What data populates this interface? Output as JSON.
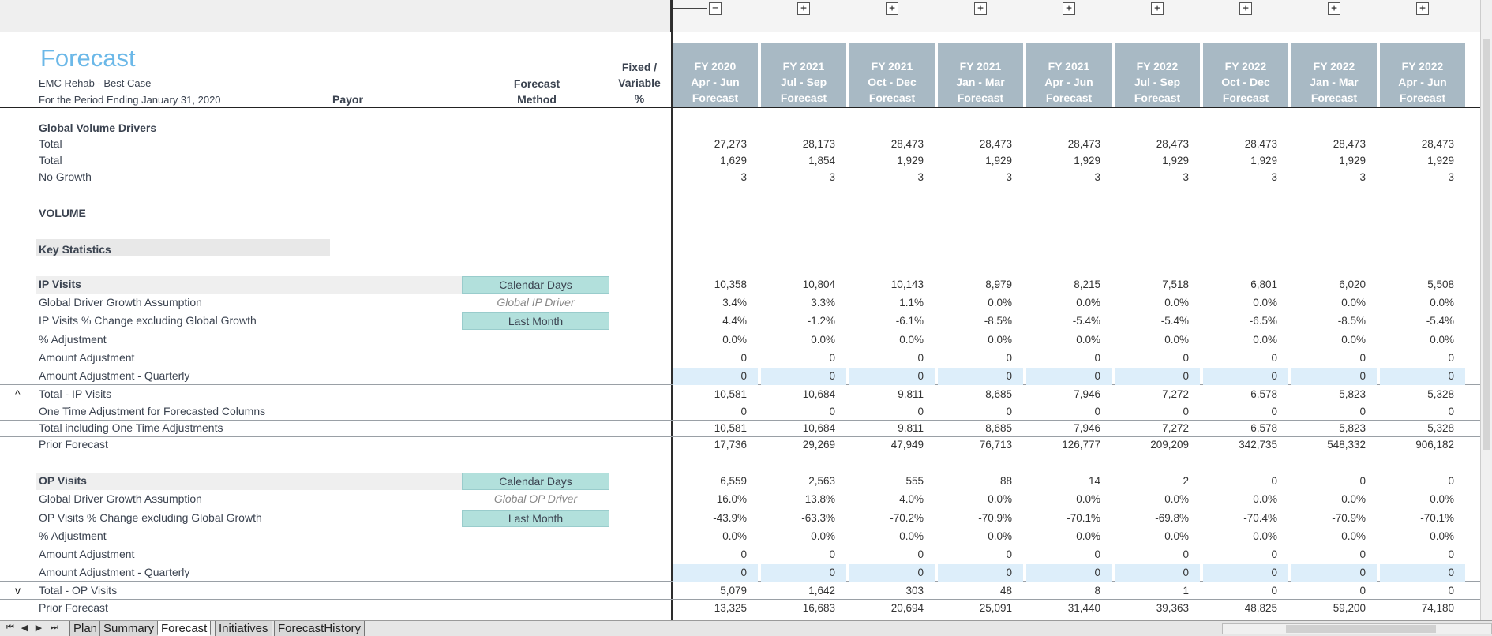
{
  "header": {
    "title": "Forecast",
    "subtitle1": "EMC Rehab - Best Case",
    "subtitle2": "For the Period Ending January 31, 2020",
    "payor_label": "Payor",
    "method_label_1": "Forecast",
    "method_label_2": "Method",
    "fixed_1": "Fixed /",
    "fixed_2": "Variable",
    "fixed_3": "%"
  },
  "columns": [
    {
      "fy": "FY 2020",
      "period": "Apr - Jun",
      "type": "Forecast"
    },
    {
      "fy": "FY 2021",
      "period": "Jul - Sep",
      "type": "Forecast"
    },
    {
      "fy": "FY 2021",
      "period": "Oct - Dec",
      "type": "Forecast"
    },
    {
      "fy": "FY 2021",
      "period": "Jan - Mar",
      "type": "Forecast"
    },
    {
      "fy": "FY 2021",
      "period": "Apr - Jun",
      "type": "Forecast"
    },
    {
      "fy": "FY 2022",
      "period": "Jul - Sep",
      "type": "Forecast"
    },
    {
      "fy": "FY 2022",
      "period": "Oct - Dec",
      "type": "Forecast"
    },
    {
      "fy": "FY 2022",
      "period": "Jan - Mar",
      "type": "Forecast"
    },
    {
      "fy": "FY 2022",
      "period": "Apr - Jun",
      "type": "Forecast"
    }
  ],
  "outline": {
    "minus": "−",
    "plus": "+"
  },
  "sections": {
    "global": "Global Volume Drivers",
    "volume": "VOLUME",
    "key_statistics": "Key Statistics"
  },
  "rows": [
    {
      "label": "Total",
      "values": [
        "27,273",
        "28,173",
        "28,473",
        "28,473",
        "28,473",
        "28,473",
        "28,473",
        "28,473",
        "28,473"
      ]
    },
    {
      "label": "Total",
      "values": [
        "1,629",
        "1,854",
        "1,929",
        "1,929",
        "1,929",
        "1,929",
        "1,929",
        "1,929",
        "1,929"
      ]
    },
    {
      "label": "No Growth",
      "values": [
        "3",
        "3",
        "3",
        "3",
        "3",
        "3",
        "3",
        "3",
        "3"
      ]
    },
    {
      "label": "IP Visits",
      "method": "Calendar Days",
      "values": [
        "10,358",
        "10,804",
        "10,143",
        "8,979",
        "8,215",
        "7,518",
        "6,801",
        "6,020",
        "5,508"
      ]
    },
    {
      "label": "Global Driver Growth Assumption",
      "method": "Global IP Driver",
      "values": [
        "3.4%",
        "3.3%",
        "1.1%",
        "0.0%",
        "0.0%",
        "0.0%",
        "0.0%",
        "0.0%",
        "0.0%"
      ]
    },
    {
      "label": "IP Visits % Change excluding Global Growth",
      "method": "Last Month",
      "values": [
        "4.4%",
        "-1.2%",
        "-6.1%",
        "-8.5%",
        "-5.4%",
        "-5.4%",
        "-6.5%",
        "-8.5%",
        "-5.4%"
      ]
    },
    {
      "label": "% Adjustment",
      "values": [
        "0.0%",
        "0.0%",
        "0.0%",
        "0.0%",
        "0.0%",
        "0.0%",
        "0.0%",
        "0.0%",
        "0.0%"
      ]
    },
    {
      "label": "Amount Adjustment",
      "values": [
        "0",
        "0",
        "0",
        "0",
        "0",
        "0",
        "0",
        "0",
        "0"
      ]
    },
    {
      "label": "Amount Adjustment - Quarterly",
      "values": [
        "0",
        "0",
        "0",
        "0",
        "0",
        "0",
        "0",
        "0",
        "0"
      ]
    },
    {
      "label": "Total - IP Visits",
      "marker": "^",
      "values": [
        "10,581",
        "10,684",
        "9,811",
        "8,685",
        "7,946",
        "7,272",
        "6,578",
        "5,823",
        "5,328"
      ]
    },
    {
      "label": "One Time Adjustment for Forecasted Columns",
      "values": [
        "0",
        "0",
        "0",
        "0",
        "0",
        "0",
        "0",
        "0",
        "0"
      ]
    },
    {
      "label": "Total including One Time Adjustments",
      "values": [
        "10,581",
        "10,684",
        "9,811",
        "8,685",
        "7,946",
        "7,272",
        "6,578",
        "5,823",
        "5,328"
      ]
    },
    {
      "label": "Prior Forecast",
      "values": [
        "17,736",
        "29,269",
        "47,949",
        "76,713",
        "126,777",
        "209,209",
        "342,735",
        "548,332",
        "906,182"
      ]
    },
    {
      "label": "OP Visits",
      "method": "Calendar Days",
      "values": [
        "6,559",
        "2,563",
        "555",
        "88",
        "14",
        "2",
        "0",
        "0",
        "0"
      ]
    },
    {
      "label": "Global Driver Growth Assumption",
      "method": "Global OP Driver",
      "values": [
        "16.0%",
        "13.8%",
        "4.0%",
        "0.0%",
        "0.0%",
        "0.0%",
        "0.0%",
        "0.0%",
        "0.0%"
      ]
    },
    {
      "label": "OP Visits % Change excluding Global Growth",
      "method": "Last Month",
      "values": [
        "-43.9%",
        "-63.3%",
        "-70.2%",
        "-70.9%",
        "-70.1%",
        "-69.8%",
        "-70.4%",
        "-70.9%",
        "-70.1%"
      ]
    },
    {
      "label": "% Adjustment",
      "values": [
        "0.0%",
        "0.0%",
        "0.0%",
        "0.0%",
        "0.0%",
        "0.0%",
        "0.0%",
        "0.0%",
        "0.0%"
      ]
    },
    {
      "label": "Amount Adjustment",
      "values": [
        "0",
        "0",
        "0",
        "0",
        "0",
        "0",
        "0",
        "0",
        "0"
      ]
    },
    {
      "label": "Amount Adjustment - Quarterly",
      "values": [
        "0",
        "0",
        "0",
        "0",
        "0",
        "0",
        "0",
        "0",
        "0"
      ]
    },
    {
      "label": "Total - OP Visits",
      "marker": "v",
      "values": [
        "5,079",
        "1,642",
        "303",
        "48",
        "8",
        "1",
        "0",
        "0",
        "0"
      ]
    },
    {
      "label": "Prior Forecast",
      "values": [
        "13,325",
        "16,683",
        "20,694",
        "25,091",
        "31,440",
        "39,363",
        "48,825",
        "59,200",
        "74,180"
      ]
    }
  ],
  "sheet_tabs": [
    "Plan",
    "Summary",
    "Forecast",
    "Initiatives",
    "ForecastHistory"
  ],
  "active_tab": "Forecast",
  "colors": {
    "title": "#6bb8e8",
    "column_header": "#a8b9c4",
    "method_fill": "#b2e0dc",
    "input_blue": "#ddeefa"
  }
}
